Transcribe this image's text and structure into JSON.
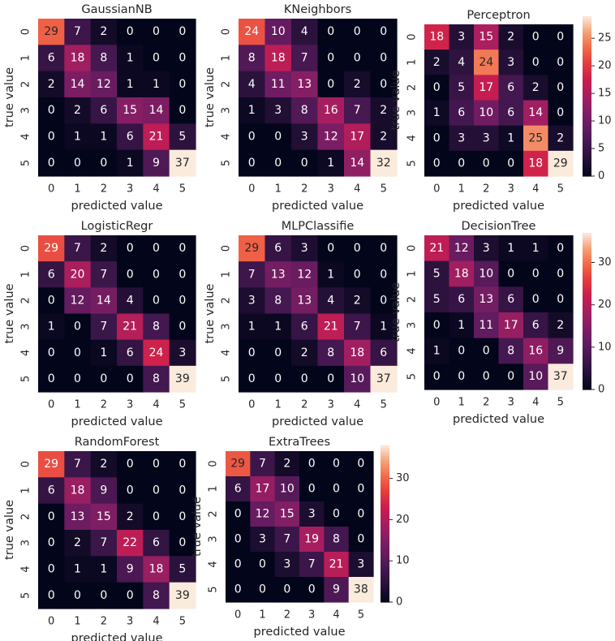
{
  "chart_data": [
    {
      "type": "heatmap",
      "title": "GaussianNB",
      "xlabel": "predicted value",
      "ylabel": "true value",
      "x_ticks": [
        "0",
        "1",
        "2",
        "3",
        "4",
        "5"
      ],
      "y_ticks": [
        "0",
        "1",
        "2",
        "3",
        "4",
        "5"
      ],
      "matrix": [
        [
          29,
          7,
          2,
          0,
          0,
          0
        ],
        [
          6,
          18,
          8,
          1,
          0,
          0
        ],
        [
          2,
          14,
          12,
          1,
          1,
          0
        ],
        [
          0,
          2,
          6,
          15,
          14,
          0
        ],
        [
          0,
          1,
          1,
          6,
          21,
          5
        ],
        [
          0,
          0,
          0,
          1,
          9,
          37
        ]
      ],
      "colorbar": null
    },
    {
      "type": "heatmap",
      "title": "KNeighbors",
      "xlabel": "predicted value",
      "ylabel": "true value",
      "x_ticks": [
        "0",
        "1",
        "2",
        "3",
        "4",
        "5"
      ],
      "y_ticks": [
        "0",
        "1",
        "2",
        "3",
        "4",
        "5"
      ],
      "matrix": [
        [
          24,
          10,
          4,
          0,
          0,
          0
        ],
        [
          8,
          18,
          7,
          0,
          0,
          0
        ],
        [
          4,
          11,
          13,
          0,
          2,
          0
        ],
        [
          1,
          3,
          8,
          16,
          7,
          2
        ],
        [
          0,
          0,
          3,
          12,
          17,
          2
        ],
        [
          0,
          0,
          0,
          1,
          14,
          32
        ]
      ],
      "colorbar": null
    },
    {
      "type": "heatmap",
      "title": "Perceptron",
      "xlabel": "predicted value",
      "ylabel": "true value",
      "x_ticks": [
        "0",
        "1",
        "2",
        "3",
        "4",
        "5"
      ],
      "y_ticks": [
        "0",
        "1",
        "2",
        "3",
        "4",
        "5"
      ],
      "matrix": [
        [
          18,
          3,
          15,
          2,
          0,
          0
        ],
        [
          2,
          4,
          24,
          3,
          0,
          0
        ],
        [
          0,
          5,
          17,
          6,
          2,
          0
        ],
        [
          1,
          6,
          10,
          6,
          14,
          0
        ],
        [
          0,
          3,
          3,
          1,
          25,
          2
        ],
        [
          0,
          0,
          0,
          0,
          18,
          29
        ]
      ],
      "colorbar": {
        "min": 0,
        "max": 29,
        "ticks": [
          0,
          5,
          10,
          15,
          20,
          25
        ]
      }
    },
    {
      "type": "heatmap",
      "title": "LogisticRegr",
      "xlabel": "predicted value",
      "ylabel": "true value",
      "x_ticks": [
        "0",
        "1",
        "2",
        "3",
        "4",
        "5"
      ],
      "y_ticks": [
        "0",
        "1",
        "2",
        "3",
        "4",
        "5"
      ],
      "matrix": [
        [
          29,
          7,
          2,
          0,
          0,
          0
        ],
        [
          6,
          20,
          7,
          0,
          0,
          0
        ],
        [
          0,
          12,
          14,
          4,
          0,
          0
        ],
        [
          1,
          0,
          7,
          21,
          8,
          0
        ],
        [
          0,
          0,
          1,
          6,
          24,
          3
        ],
        [
          0,
          0,
          0,
          0,
          8,
          39
        ]
      ],
      "colorbar": null
    },
    {
      "type": "heatmap",
      "title": "MLPClassifie",
      "xlabel": "predicted value",
      "ylabel": "true value",
      "x_ticks": [
        "0",
        "1",
        "2",
        "3",
        "4",
        "5"
      ],
      "y_ticks": [
        "0",
        "1",
        "2",
        "3",
        "4",
        "5"
      ],
      "matrix": [
        [
          29,
          6,
          3,
          0,
          0,
          0
        ],
        [
          7,
          13,
          12,
          1,
          0,
          0
        ],
        [
          3,
          8,
          13,
          4,
          2,
          0
        ],
        [
          1,
          1,
          6,
          21,
          7,
          1
        ],
        [
          0,
          0,
          2,
          8,
          18,
          6
        ],
        [
          0,
          0,
          0,
          0,
          10,
          37
        ]
      ],
      "colorbar": null
    },
    {
      "type": "heatmap",
      "title": "DecisionTree",
      "xlabel": "predicted value",
      "ylabel": "true value",
      "x_ticks": [
        "0",
        "1",
        "2",
        "3",
        "4",
        "5"
      ],
      "y_ticks": [
        "0",
        "1",
        "2",
        "3",
        "4",
        "5"
      ],
      "matrix": [
        [
          21,
          12,
          3,
          1,
          1,
          0
        ],
        [
          5,
          18,
          10,
          0,
          0,
          0
        ],
        [
          5,
          6,
          13,
          6,
          0,
          0
        ],
        [
          0,
          1,
          11,
          17,
          6,
          2
        ],
        [
          1,
          0,
          0,
          8,
          16,
          9
        ],
        [
          0,
          0,
          0,
          0,
          10,
          37
        ]
      ],
      "colorbar": {
        "min": 0,
        "max": 37,
        "ticks": [
          0,
          10,
          20,
          30
        ]
      }
    },
    {
      "type": "heatmap",
      "title": "RandomForest",
      "xlabel": "predicted value",
      "ylabel": "true value",
      "x_ticks": [
        "0",
        "1",
        "2",
        "3",
        "4",
        "5"
      ],
      "y_ticks": [
        "0",
        "1",
        "2",
        "3",
        "4",
        "5"
      ],
      "matrix": [
        [
          29,
          7,
          2,
          0,
          0,
          0
        ],
        [
          6,
          18,
          9,
          0,
          0,
          0
        ],
        [
          0,
          13,
          15,
          2,
          0,
          0
        ],
        [
          0,
          2,
          7,
          22,
          6,
          0
        ],
        [
          0,
          1,
          1,
          9,
          18,
          5
        ],
        [
          0,
          0,
          0,
          0,
          8,
          39
        ]
      ],
      "colorbar": null
    },
    {
      "type": "heatmap",
      "title": "ExtraTrees",
      "xlabel": "predicted value",
      "ylabel": "true value",
      "x_ticks": [
        "0",
        "1",
        "2",
        "3",
        "4",
        "5"
      ],
      "y_ticks": [
        "0",
        "1",
        "2",
        "3",
        "4",
        "5"
      ],
      "matrix": [
        [
          29,
          7,
          2,
          0,
          0,
          0
        ],
        [
          6,
          17,
          10,
          0,
          0,
          0
        ],
        [
          0,
          12,
          15,
          3,
          0,
          0
        ],
        [
          0,
          3,
          7,
          19,
          8,
          0
        ],
        [
          0,
          0,
          3,
          7,
          21,
          3
        ],
        [
          0,
          0,
          0,
          0,
          9,
          38
        ]
      ],
      "colorbar": {
        "min": 0,
        "max": 38,
        "ticks": [
          0,
          10,
          20,
          30
        ]
      }
    }
  ]
}
